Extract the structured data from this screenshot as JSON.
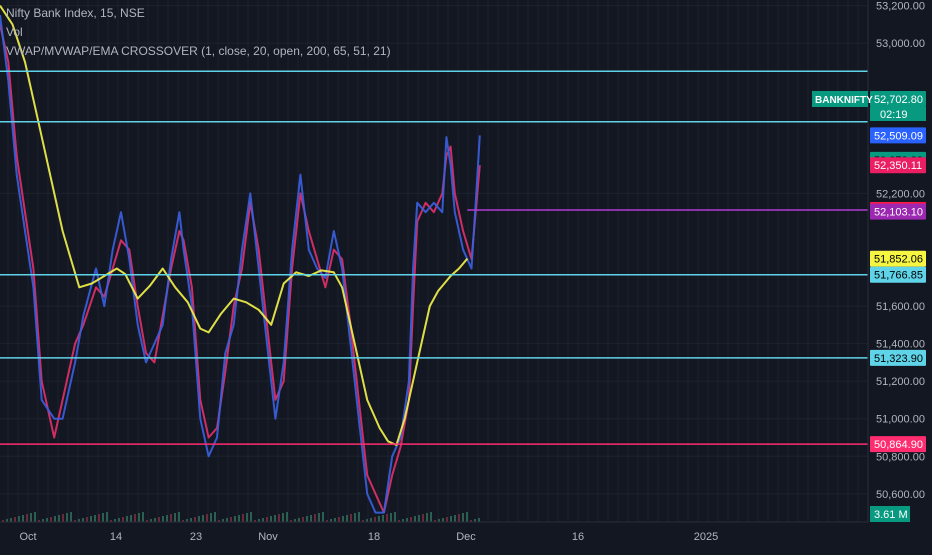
{
  "header": {
    "symbol_line": "Nifty Bank Index, 15, NSE",
    "volume_label": "Vol",
    "indicator_line": "VWAP/MVWAP/EMA CROSSOVER (1, close, 20, open, 200, 65, 51, 21)"
  },
  "colors": {
    "background": "#131722",
    "grid": "#1e222d",
    "ema_line": "#f0f04a",
    "price_blue": "#3a5fe0",
    "price_red": "#e0306a",
    "cyan_level": "#5fd3e8",
    "magenta_level": "#ff2d6f",
    "purple_level": "#b23ad6"
  },
  "chart_data": {
    "type": "line",
    "y_axis": {
      "range": [
        50450,
        53230
      ],
      "tick_labels": [
        "53,200.00",
        "53,000.00",
        "52,200.00",
        "51,600.00",
        "51,400.00",
        "51,200.00",
        "51,000.00",
        "50,800.00",
        "50,600.00"
      ]
    },
    "x_axis": {
      "tick_labels": [
        "Oct",
        "14",
        "23",
        "Nov",
        "18",
        "Dec",
        "16",
        "2025"
      ]
    },
    "horizontal_levels": [
      {
        "value": 52850.4,
        "label": "52,850.40",
        "color": "#5fd3e8"
      },
      {
        "value": 52581.5,
        "label": "52,581.50",
        "color": "#5fd3e8"
      },
      {
        "value": 51766.85,
        "label": "51,766.85",
        "color": "#5fd3e8"
      },
      {
        "value": 51323.9,
        "label": "51,323.90",
        "color": "#5fd3e8"
      },
      {
        "value": 50864.9,
        "label": "50,864.90",
        "color": "#ff2d6f"
      },
      {
        "value": 52111.88,
        "label": "52,111.88",
        "color": "#b23ad6"
      }
    ],
    "price_labels": [
      {
        "value": 52702.8,
        "label": "52,702.80",
        "bg": "#089981",
        "fg": "#ffffff"
      },
      {
        "value": 52509.09,
        "label": "52,509.09",
        "bg": "#2962ff",
        "fg": "#ffffff"
      },
      {
        "value": 52378.39,
        "label": "52,378.39",
        "bg": "#089981",
        "fg": "#000000"
      },
      {
        "value": 52350.11,
        "label": "52,350.11",
        "bg": "#e91e63",
        "fg": "#ffffff"
      },
      {
        "value": 52111.88,
        "label": "52,111.88",
        "bg": "#ff1744",
        "fg": "#ffffff"
      },
      {
        "value": 52103.1,
        "label": "52,103.10",
        "bg": "#9c27b0",
        "fg": "#ffffff"
      },
      {
        "value": 51852.06,
        "label": "51,852.06",
        "bg": "#f5f542",
        "fg": "#000000"
      },
      {
        "value": 51766.85,
        "label": "51,766.85",
        "bg": "#5fd3e8",
        "fg": "#000000"
      },
      {
        "value": 51323.9,
        "label": "51,323.90",
        "bg": "#5fd3e8",
        "fg": "#000000"
      },
      {
        "value": 50864.9,
        "label": "50,864.90",
        "bg": "#ff2d6f",
        "fg": "#ffffff"
      }
    ],
    "symbol_tag": {
      "name": "BANKNIFTY",
      "price": "52,702.80",
      "countdown": "02:19"
    },
    "volume_tag": "3.61 M",
    "series": [
      {
        "name": "EMA",
        "color": "#f0f04a",
        "points": [
          [
            0,
            53200
          ],
          [
            3,
            53100
          ],
          [
            6,
            52900
          ],
          [
            9,
            52600
          ],
          [
            12,
            52300
          ],
          [
            15,
            52000
          ],
          [
            17,
            51850
          ],
          [
            19,
            51700
          ],
          [
            22,
            51720
          ],
          [
            25,
            51760
          ],
          [
            28,
            51800
          ],
          [
            30,
            51770
          ],
          [
            33,
            51640
          ],
          [
            36,
            51710
          ],
          [
            39,
            51800
          ],
          [
            42,
            51700
          ],
          [
            45,
            51620
          ],
          [
            48,
            51480
          ],
          [
            50,
            51460
          ],
          [
            53,
            51560
          ],
          [
            56,
            51640
          ],
          [
            59,
            51620
          ],
          [
            62,
            51580
          ],
          [
            65,
            51500
          ],
          [
            68,
            51720
          ],
          [
            71,
            51780
          ],
          [
            74,
            51760
          ],
          [
            77,
            51790
          ],
          [
            80,
            51780
          ],
          [
            82,
            51700
          ],
          [
            85,
            51400
          ],
          [
            88,
            51100
          ],
          [
            91,
            50950
          ],
          [
            93,
            50880
          ],
          [
            95,
            50860
          ],
          [
            97,
            51000
          ],
          [
            100,
            51300
          ],
          [
            103,
            51600
          ],
          [
            105,
            51680
          ],
          [
            108,
            51760
          ],
          [
            110,
            51800
          ],
          [
            112,
            51852.06
          ]
        ]
      },
      {
        "name": "VWAP",
        "color": "#3a5fe0",
        "points": [
          [
            0,
            53150
          ],
          [
            2,
            52800
          ],
          [
            4,
            52300
          ],
          [
            6,
            52000
          ],
          [
            8,
            51700
          ],
          [
            10,
            51100
          ],
          [
            13,
            51000
          ],
          [
            15,
            51000
          ],
          [
            18,
            51300
          ],
          [
            20,
            51550
          ],
          [
            23,
            51800
          ],
          [
            25,
            51600
          ],
          [
            27,
            51900
          ],
          [
            29,
            52100
          ],
          [
            31,
            51850
          ],
          [
            33,
            51500
          ],
          [
            35,
            51300
          ],
          [
            37,
            51400
          ],
          [
            39,
            51500
          ],
          [
            41,
            51850
          ],
          [
            43,
            52100
          ],
          [
            44,
            51900
          ],
          [
            46,
            51600
          ],
          [
            48,
            51000
          ],
          [
            50,
            50800
          ],
          [
            52,
            50900
          ],
          [
            54,
            51350
          ],
          [
            56,
            51500
          ],
          [
            58,
            51900
          ],
          [
            60,
            52200
          ],
          [
            62,
            51800
          ],
          [
            64,
            51400
          ],
          [
            66,
            51000
          ],
          [
            68,
            51300
          ],
          [
            70,
            51900
          ],
          [
            72,
            52300
          ],
          [
            74,
            51900
          ],
          [
            76,
            51800
          ],
          [
            78,
            51750
          ],
          [
            80,
            52000
          ],
          [
            82,
            51800
          ],
          [
            84,
            51400
          ],
          [
            86,
            51000
          ],
          [
            88,
            50600
          ],
          [
            90,
            50500
          ],
          [
            92,
            50500
          ],
          [
            94,
            50800
          ],
          [
            96,
            50900
          ],
          [
            98,
            51200
          ],
          [
            99,
            51800
          ],
          [
            100,
            52150
          ],
          [
            102,
            52100
          ],
          [
            104,
            52150
          ],
          [
            106,
            52100
          ],
          [
            107,
            52500
          ],
          [
            108,
            52350
          ],
          [
            109,
            52100
          ],
          [
            111,
            51900
          ],
          [
            113,
            51800
          ],
          [
            114,
            52150
          ],
          [
            115,
            52509.09
          ]
        ]
      },
      {
        "name": "MVWAP",
        "color": "#e0306a",
        "points": [
          [
            0,
            53100
          ],
          [
            2,
            52900
          ],
          [
            4,
            52400
          ],
          [
            6,
            52100
          ],
          [
            8,
            51800
          ],
          [
            10,
            51200
          ],
          [
            13,
            50900
          ],
          [
            15,
            51100
          ],
          [
            18,
            51400
          ],
          [
            20,
            51500
          ],
          [
            23,
            51700
          ],
          [
            25,
            51650
          ],
          [
            27,
            51800
          ],
          [
            29,
            51950
          ],
          [
            31,
            51900
          ],
          [
            33,
            51600
          ],
          [
            35,
            51350
          ],
          [
            37,
            51300
          ],
          [
            39,
            51550
          ],
          [
            41,
            51800
          ],
          [
            43,
            52000
          ],
          [
            44,
            51950
          ],
          [
            46,
            51700
          ],
          [
            48,
            51100
          ],
          [
            50,
            50900
          ],
          [
            52,
            50950
          ],
          [
            54,
            51250
          ],
          [
            56,
            51600
          ],
          [
            58,
            51800
          ],
          [
            60,
            52150
          ],
          [
            62,
            51900
          ],
          [
            64,
            51500
          ],
          [
            66,
            51100
          ],
          [
            68,
            51200
          ],
          [
            70,
            51800
          ],
          [
            72,
            52200
          ],
          [
            74,
            52000
          ],
          [
            76,
            51850
          ],
          [
            78,
            51700
          ],
          [
            80,
            51900
          ],
          [
            82,
            51850
          ],
          [
            84,
            51500
          ],
          [
            86,
            51100
          ],
          [
            88,
            50700
          ],
          [
            90,
            50600
          ],
          [
            92,
            50500
          ],
          [
            94,
            50700
          ],
          [
            96,
            50850
          ],
          [
            98,
            51100
          ],
          [
            99,
            51600
          ],
          [
            100,
            52050
          ],
          [
            102,
            52150
          ],
          [
            104,
            52100
          ],
          [
            106,
            52200
          ],
          [
            107,
            52400
          ],
          [
            108,
            52450
          ],
          [
            109,
            52200
          ],
          [
            111,
            52000
          ],
          [
            113,
            51850
          ],
          [
            114,
            52100
          ],
          [
            115,
            52350.11
          ]
        ]
      }
    ]
  }
}
